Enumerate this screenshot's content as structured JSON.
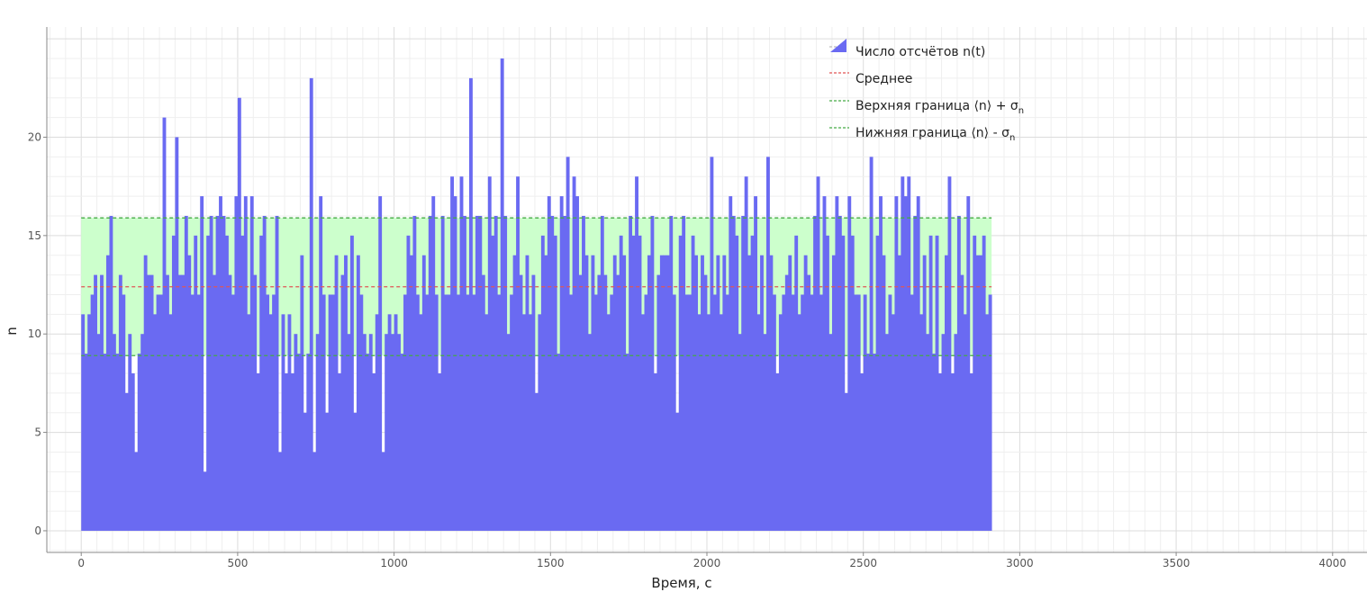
{
  "chart_data": {
    "type": "bar",
    "title": "",
    "xlabel": "Время, с",
    "ylabel": "n",
    "xlim": [
      -110,
      4110
    ],
    "ylim": [
      -1.1,
      25.6
    ],
    "bin_width": 10,
    "x_start": 0,
    "xticks": [
      0,
      500,
      1000,
      1500,
      2000,
      2500,
      3000,
      3500,
      4000
    ],
    "yticks": [
      0,
      5,
      10,
      15,
      20
    ],
    "grid": true,
    "legend_position": "top-center",
    "mean": 12.4,
    "upper_bound": 15.9,
    "lower_bound": 8.9,
    "colors": {
      "bars": "#6a6af2",
      "band": "#ccffcc",
      "mean": "#e05555",
      "bounds": "#44aa44"
    },
    "legend": {
      "counts_label": "Число отсчётов n(t)",
      "mean_label": "Среднее",
      "upper_prefix": "Верхняя граница ⟨n⟩ + σ",
      "upper_sub": "n",
      "lower_prefix": "Нижняя граница ⟨n⟩ - σ",
      "lower_sub": "n"
    },
    "values": [
      11,
      9,
      11,
      12,
      13,
      10,
      13,
      9,
      14,
      16,
      10,
      9,
      13,
      12,
      7,
      10,
      8,
      4,
      9,
      10,
      14,
      13,
      13,
      11,
      12,
      12,
      21,
      13,
      11,
      15,
      20,
      13,
      13,
      16,
      14,
      12,
      15,
      12,
      17,
      3,
      15,
      16,
      13,
      16,
      17,
      16,
      15,
      13,
      12,
      17,
      22,
      15,
      17,
      11,
      17,
      13,
      8,
      15,
      16,
      12,
      11,
      12,
      16,
      4,
      11,
      8,
      11,
      8,
      10,
      9,
      14,
      6,
      9,
      23,
      4,
      10,
      17,
      12,
      6,
      12,
      12,
      14,
      8,
      13,
      14,
      10,
      15,
      6,
      14,
      12,
      10,
      9,
      10,
      8,
      11,
      17,
      4,
      10,
      11,
      10,
      11,
      10,
      9,
      12,
      15,
      14,
      16,
      12,
      11,
      14,
      12,
      16,
      17,
      12,
      8,
      16,
      12,
      12,
      18,
      17,
      12,
      18,
      16,
      12,
      23,
      12,
      16,
      16,
      13,
      11,
      18,
      15,
      16,
      12,
      24,
      16,
      10,
      12,
      14,
      18,
      13,
      11,
      14,
      11,
      13,
      7,
      11,
      15,
      14,
      17,
      16,
      15,
      9,
      17,
      16,
      19,
      12,
      18,
      17,
      13,
      16,
      14,
      10,
      14,
      12,
      13,
      16,
      13,
      11,
      12,
      14,
      13,
      15,
      14,
      9,
      16,
      15,
      18,
      15,
      11,
      12,
      14,
      16,
      8,
      13,
      14,
      14,
      14,
      16,
      12,
      6,
      15,
      16,
      12,
      12,
      15,
      14,
      11,
      14,
      13,
      11,
      19,
      12,
      14,
      11,
      14,
      12,
      17,
      16,
      15,
      10,
      16,
      18,
      14,
      15,
      17,
      11,
      14,
      10,
      19,
      14,
      12,
      8,
      11,
      12,
      13,
      14,
      12,
      15,
      11,
      12,
      14,
      13,
      12,
      16,
      18,
      12,
      17,
      15,
      10,
      14,
      17,
      16,
      15,
      7,
      17,
      15,
      12,
      12,
      8,
      12,
      9,
      19,
      9,
      15,
      17,
      14,
      10,
      12,
      11,
      17,
      14,
      18,
      17,
      18,
      12,
      16,
      17,
      11,
      14,
      10,
      15,
      9,
      15,
      8,
      10,
      14,
      18,
      8,
      10,
      16,
      13,
      11,
      17,
      8,
      15,
      14,
      14,
      15,
      11,
      12
    ]
  }
}
